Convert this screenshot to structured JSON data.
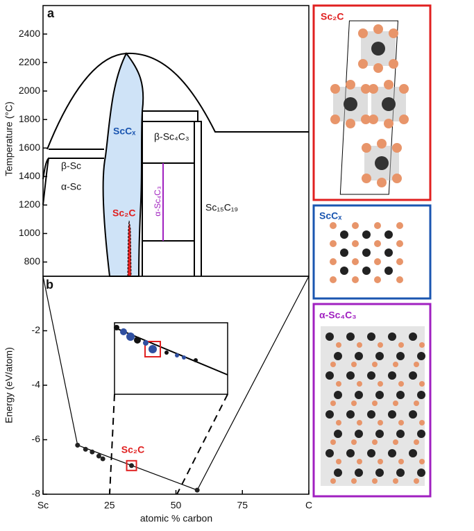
{
  "chart_data": [
    {
      "type": "phase-diagram",
      "panel_label": "a",
      "ylabel": "Temperature (°C)",
      "ylim": [
        700,
        2600
      ],
      "yticks": [
        800,
        1000,
        1200,
        1400,
        1600,
        1800,
        2000,
        2200,
        2400
      ],
      "phase_labels": [
        "β-Sc",
        "α-Sc",
        "ScCₓ",
        "Sc₂C",
        "β-Sc₄C₃",
        "α-Sc₄C₃",
        "Sc₁₅C₁₉"
      ]
    },
    {
      "type": "scatter",
      "panel_label": "b",
      "xlabel": "atomic % carbon",
      "ylabel": "Energy (eV/atom)",
      "xlim": [
        0,
        100
      ],
      "xticks": [
        {
          "value": 0,
          "label": "Sc"
        },
        25,
        50,
        75,
        {
          "value": 100,
          "label": "C"
        }
      ],
      "ylim": [
        -8,
        0
      ],
      "yticks": [
        -2,
        -4,
        -6,
        -8
      ],
      "color": "#222222",
      "x": [
        13,
        16,
        18.5,
        21,
        22.5,
        33.3,
        58
      ],
      "values": [
        -6.2,
        -6.35,
        -6.45,
        -6.6,
        -6.7,
        -6.95,
        -7.85
      ],
      "hull": {
        "x": [
          0,
          13,
          58,
          100
        ],
        "values": [
          0,
          -6.2,
          -7.85,
          0
        ]
      },
      "annotation": "Sc₂C"
    }
  ],
  "structures": [
    "Sc₂C",
    "ScCₓ",
    "α-Sc₄C₃"
  ]
}
